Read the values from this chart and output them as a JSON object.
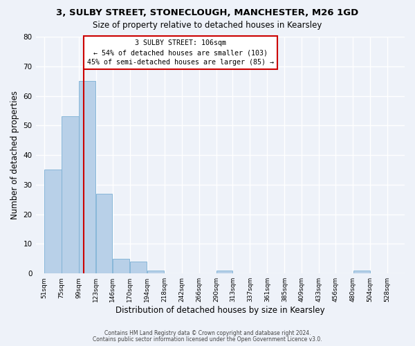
{
  "title": "3, SULBY STREET, STONECLOUGH, MANCHESTER, M26 1GD",
  "subtitle": "Size of property relative to detached houses in Kearsley",
  "xlabel": "Distribution of detached houses by size in Kearsley",
  "ylabel": "Number of detached properties",
  "bar_left_edges": [
    51,
    75,
    99,
    123,
    146,
    170,
    194,
    218,
    242,
    266,
    290,
    313,
    337,
    361,
    385,
    409,
    433,
    456,
    480,
    504
  ],
  "bar_widths": [
    24,
    24,
    24,
    23,
    24,
    24,
    24,
    24,
    24,
    24,
    23,
    24,
    24,
    24,
    24,
    24,
    23,
    24,
    24,
    24
  ],
  "bar_heights": [
    35,
    53,
    65,
    27,
    5,
    4,
    1,
    0,
    0,
    0,
    1,
    0,
    0,
    0,
    0,
    0,
    0,
    0,
    1,
    0
  ],
  "bar_color": "#b8d0e8",
  "bar_edgecolor": "#7bafd4",
  "tick_labels": [
    "51sqm",
    "75sqm",
    "99sqm",
    "123sqm",
    "146sqm",
    "170sqm",
    "194sqm",
    "218sqm",
    "242sqm",
    "266sqm",
    "290sqm",
    "313sqm",
    "337sqm",
    "361sqm",
    "385sqm",
    "409sqm",
    "433sqm",
    "456sqm",
    "480sqm",
    "504sqm",
    "528sqm"
  ],
  "tick_positions": [
    51,
    75,
    99,
    123,
    146,
    170,
    194,
    218,
    242,
    266,
    290,
    313,
    337,
    361,
    385,
    409,
    433,
    456,
    480,
    504,
    528
  ],
  "ylim": [
    0,
    80
  ],
  "xlim": [
    39,
    552
  ],
  "vline_x": 106,
  "vline_color": "#cc0000",
  "annotation_line1": "3 SULBY STREET: 106sqm",
  "annotation_line2": "← 54% of detached houses are smaller (103)",
  "annotation_line3": "45% of semi-detached houses are larger (85) →",
  "footer1": "Contains HM Land Registry data © Crown copyright and database right 2024.",
  "footer2": "Contains public sector information licensed under the Open Government Licence v3.0.",
  "background_color": "#eef2f9",
  "grid_color": "#ffffff",
  "yticks": [
    0,
    10,
    20,
    30,
    40,
    50,
    60,
    70,
    80
  ]
}
